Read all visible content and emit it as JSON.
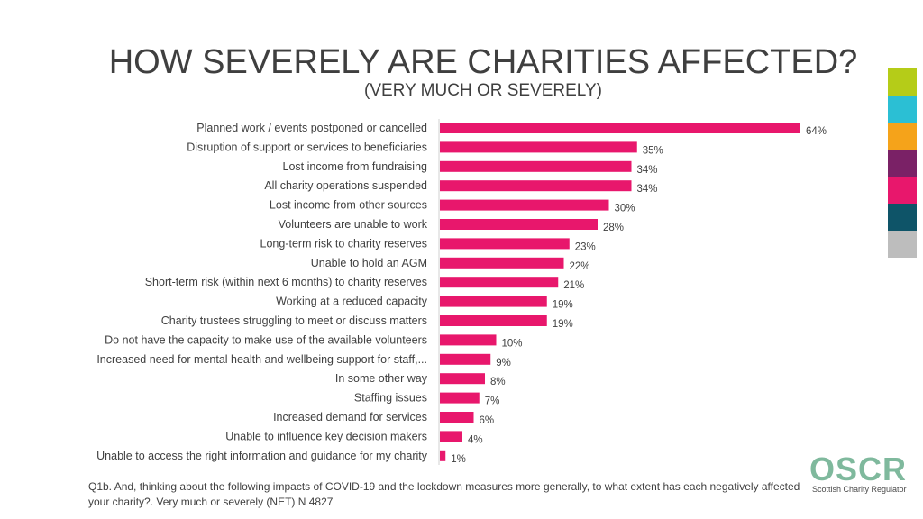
{
  "title": "HOW SEVERELY ARE CHARITIES AFFECTED?",
  "subtitle": "(VERY MUCH OR SEVERELY)",
  "chart_data": {
    "type": "bar",
    "orientation": "horizontal",
    "categories": [
      "Planned work / events postponed or cancelled",
      "Disruption of support or services to beneficiaries",
      "Lost income from fundraising",
      "All charity operations suspended",
      "Lost income from other sources",
      "Volunteers are unable to work",
      "Long-term risk to charity reserves",
      "Unable to hold an AGM",
      "Short-term risk (within next 6 months) to charity reserves",
      "Working at a reduced capacity",
      "Charity trustees struggling to meet or discuss matters",
      "Do not have the capacity to make use of the available volunteers",
      "Increased need for mental health and wellbeing support for staff,...",
      "In some other way",
      "Staffing issues",
      "Increased demand for services",
      "Unable to influence key decision makers",
      "Unable to access the right information and guidance for my charity"
    ],
    "values": [
      64,
      35,
      34,
      34,
      30,
      28,
      23,
      22,
      21,
      19,
      19,
      10,
      9,
      8,
      7,
      6,
      4,
      1
    ],
    "value_labels": [
      "64%",
      "35%",
      "34%",
      "34%",
      "30%",
      "28%",
      "23%",
      "22%",
      "21%",
      "19%",
      "19%",
      "10%",
      "9%",
      "8%",
      "7%",
      "6%",
      "4%",
      "1%"
    ],
    "xlim": [
      0,
      64
    ],
    "bar_color": "#e8176c",
    "grid": false,
    "legend": "none"
  },
  "side_stripes": [
    "#b5cc18",
    "#2bbfd4",
    "#f5a31a",
    "#7a2166",
    "#e8176c",
    "#0e5468",
    "#bdbdbd"
  ],
  "footnote": "Q1b. And, thinking about the following impacts of COVID-19 and the lockdown measures more generally, to what extent has each negatively affected your charity?. Very much or severely (NET) N 4827",
  "logo": {
    "name": "OSCR",
    "tagline": "Scottish Charity Regulator",
    "color": "#7fb99d"
  }
}
